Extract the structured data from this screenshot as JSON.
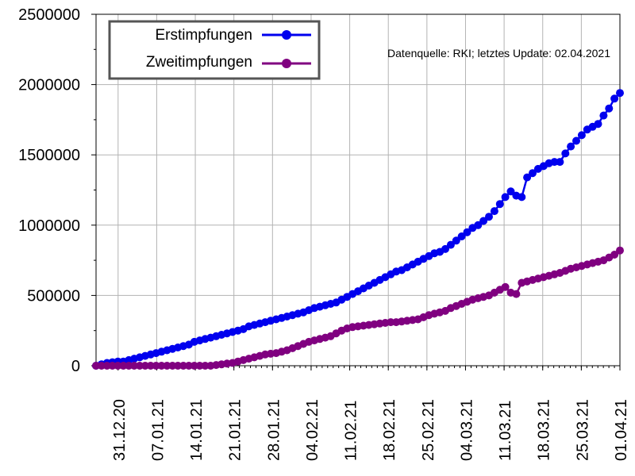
{
  "chart_data": {
    "type": "line",
    "title": "",
    "xlabel": "",
    "ylabel": "",
    "ylim": [
      0,
      2500000
    ],
    "yticks": [
      "0",
      "500000",
      "1000000",
      "1500000",
      "2000000",
      "2500000"
    ],
    "yticks_values": [
      0,
      500000,
      1000000,
      1500000,
      2000000,
      2500000
    ],
    "xticks": [
      "31.12.20",
      "07.01.21",
      "14.01.21",
      "21.01.21",
      "28.01.21",
      "04.02.21",
      "11.02.21",
      "18.02.21",
      "25.02.21",
      "04.03.21",
      "11.03.21",
      "18.03.21",
      "25.03.21",
      "01.04.21"
    ],
    "x_start": "27.12.20",
    "x_end": "01.04.21",
    "grid": true,
    "legend_position": "top-left",
    "annotation": "Datenquelle: RKI; letztes Update: 02.04.2021",
    "series": [
      {
        "name": "Erstimpfungen",
        "color": "#0000ee",
        "marker": "circle",
        "values": [
          0,
          10000,
          20000,
          25000,
          30000,
          30000,
          40000,
          50000,
          60000,
          70000,
          80000,
          90000,
          100000,
          110000,
          120000,
          130000,
          140000,
          150000,
          170000,
          180000,
          190000,
          200000,
          210000,
          220000,
          230000,
          240000,
          250000,
          260000,
          280000,
          290000,
          300000,
          310000,
          320000,
          330000,
          340000,
          350000,
          360000,
          370000,
          380000,
          395000,
          410000,
          420000,
          430000,
          440000,
          450000,
          470000,
          490000,
          510000,
          530000,
          550000,
          570000,
          590000,
          610000,
          630000,
          650000,
          670000,
          680000,
          700000,
          720000,
          740000,
          760000,
          780000,
          800000,
          810000,
          830000,
          860000,
          890000,
          920000,
          950000,
          980000,
          1000000,
          1030000,
          1060000,
          1100000,
          1150000,
          1200000,
          1240000,
          1210000,
          1200000,
          1340000,
          1370000,
          1400000,
          1420000,
          1440000,
          1450000,
          1450000,
          1510000,
          1560000,
          1600000,
          1640000,
          1680000,
          1700000,
          1720000,
          1780000,
          1830000,
          1900000,
          1940000
        ]
      },
      {
        "name": "Zweitimpfungen",
        "color": "#800080",
        "marker": "circle",
        "values": [
          0,
          0,
          0,
          0,
          0,
          0,
          0,
          0,
          0,
          0,
          0,
          0,
          0,
          0,
          0,
          0,
          0,
          0,
          0,
          0,
          0,
          0,
          5000,
          10000,
          15000,
          20000,
          30000,
          40000,
          50000,
          60000,
          70000,
          80000,
          85000,
          90000,
          100000,
          110000,
          125000,
          140000,
          155000,
          170000,
          180000,
          190000,
          200000,
          210000,
          230000,
          250000,
          265000,
          275000,
          280000,
          285000,
          290000,
          295000,
          300000,
          305000,
          310000,
          310000,
          315000,
          320000,
          325000,
          330000,
          345000,
          360000,
          370000,
          380000,
          390000,
          410000,
          425000,
          440000,
          455000,
          470000,
          480000,
          490000,
          500000,
          520000,
          540000,
          560000,
          520000,
          510000,
          590000,
          600000,
          610000,
          620000,
          630000,
          640000,
          650000,
          660000,
          675000,
          690000,
          700000,
          710000,
          720000,
          730000,
          740000,
          750000,
          770000,
          790000,
          820000
        ]
      }
    ]
  }
}
